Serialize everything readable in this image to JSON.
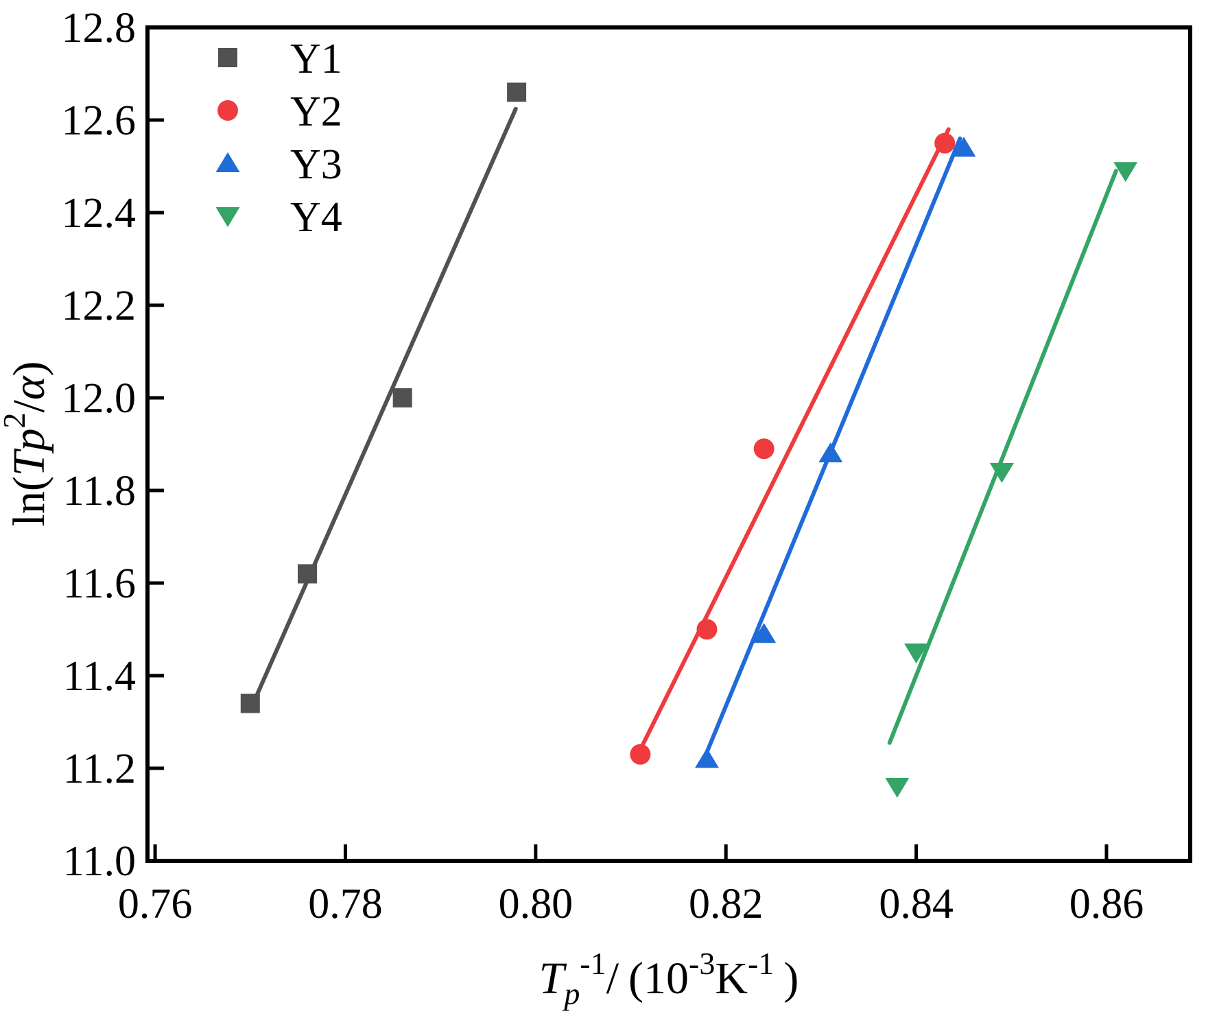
{
  "chart_data": {
    "type": "scatter",
    "title": "",
    "xlabel": "Tp^-1/(10^-3 K^-1)",
    "ylabel": "ln(Tp^2/a)",
    "xlabel_parts": [
      {
        "t": "T",
        "it": true
      },
      {
        "t": "p",
        "it": true,
        "v": "sub"
      },
      {
        "t": "-1",
        "v": "sup"
      },
      {
        "t": "/"
      },
      {
        "t": "(",
        "gap": true
      },
      {
        "t": "10"
      },
      {
        "t": "-3",
        "v": "sup"
      },
      {
        "t": "K"
      },
      {
        "t": "-1",
        "v": "sup"
      },
      {
        "t": ")",
        "gap": true
      }
    ],
    "ylabel_parts": [
      {
        "t": "ln("
      },
      {
        "t": "Tp",
        "it": true
      },
      {
        "t": "2",
        "v": "sup"
      },
      {
        "t": "/"
      },
      {
        "t": "α",
        "it": true
      },
      {
        "t": ")"
      }
    ],
    "xlim": [
      0.7592,
      0.8688
    ],
    "ylim": [
      11.0,
      12.8
    ],
    "x_ticks": [
      0.76,
      0.78,
      0.8,
      0.82,
      0.84,
      0.86
    ],
    "y_ticks": [
      11.0,
      11.2,
      11.4,
      11.6,
      11.8,
      12.0,
      12.2,
      12.4,
      12.6,
      12.8
    ],
    "grid": false,
    "legend_position": "inside-top-left",
    "background": "#ffffff",
    "axis_color": "#000000",
    "series": [
      {
        "name": "Y1",
        "color": "#515151",
        "marker": "square",
        "points": [
          [
            0.77,
            11.34
          ],
          [
            0.776,
            11.62
          ],
          [
            0.786,
            12.0
          ],
          [
            0.798,
            12.66
          ]
        ],
        "fit_line": [
          [
            0.7702,
            11.335
          ],
          [
            0.7979,
            12.624
          ]
        ]
      },
      {
        "name": "Y2",
        "color": "#EF3B3E",
        "marker": "circle",
        "points": [
          [
            0.811,
            11.23
          ],
          [
            0.818,
            11.5
          ],
          [
            0.824,
            11.89
          ],
          [
            0.843,
            12.55
          ]
        ],
        "fit_line": [
          [
            0.8108,
            11.232
          ],
          [
            0.8434,
            12.58
          ]
        ]
      },
      {
        "name": "Y3",
        "color": "#1F6BD8",
        "marker": "triangle-up",
        "points": [
          [
            0.818,
            11.22
          ],
          [
            0.824,
            11.49
          ],
          [
            0.831,
            11.88
          ],
          [
            0.845,
            12.54
          ]
        ],
        "fit_line": [
          [
            0.8176,
            11.215
          ],
          [
            0.8446,
            12.56
          ]
        ]
      },
      {
        "name": "Y4",
        "color": "#34A566",
        "marker": "triangle-down",
        "points": [
          [
            0.838,
            11.16
          ],
          [
            0.84,
            11.45
          ],
          [
            0.849,
            11.84
          ],
          [
            0.862,
            12.49
          ]
        ],
        "fit_line": [
          [
            0.8372,
            11.255
          ],
          [
            0.861,
            12.49
          ]
        ]
      }
    ]
  }
}
